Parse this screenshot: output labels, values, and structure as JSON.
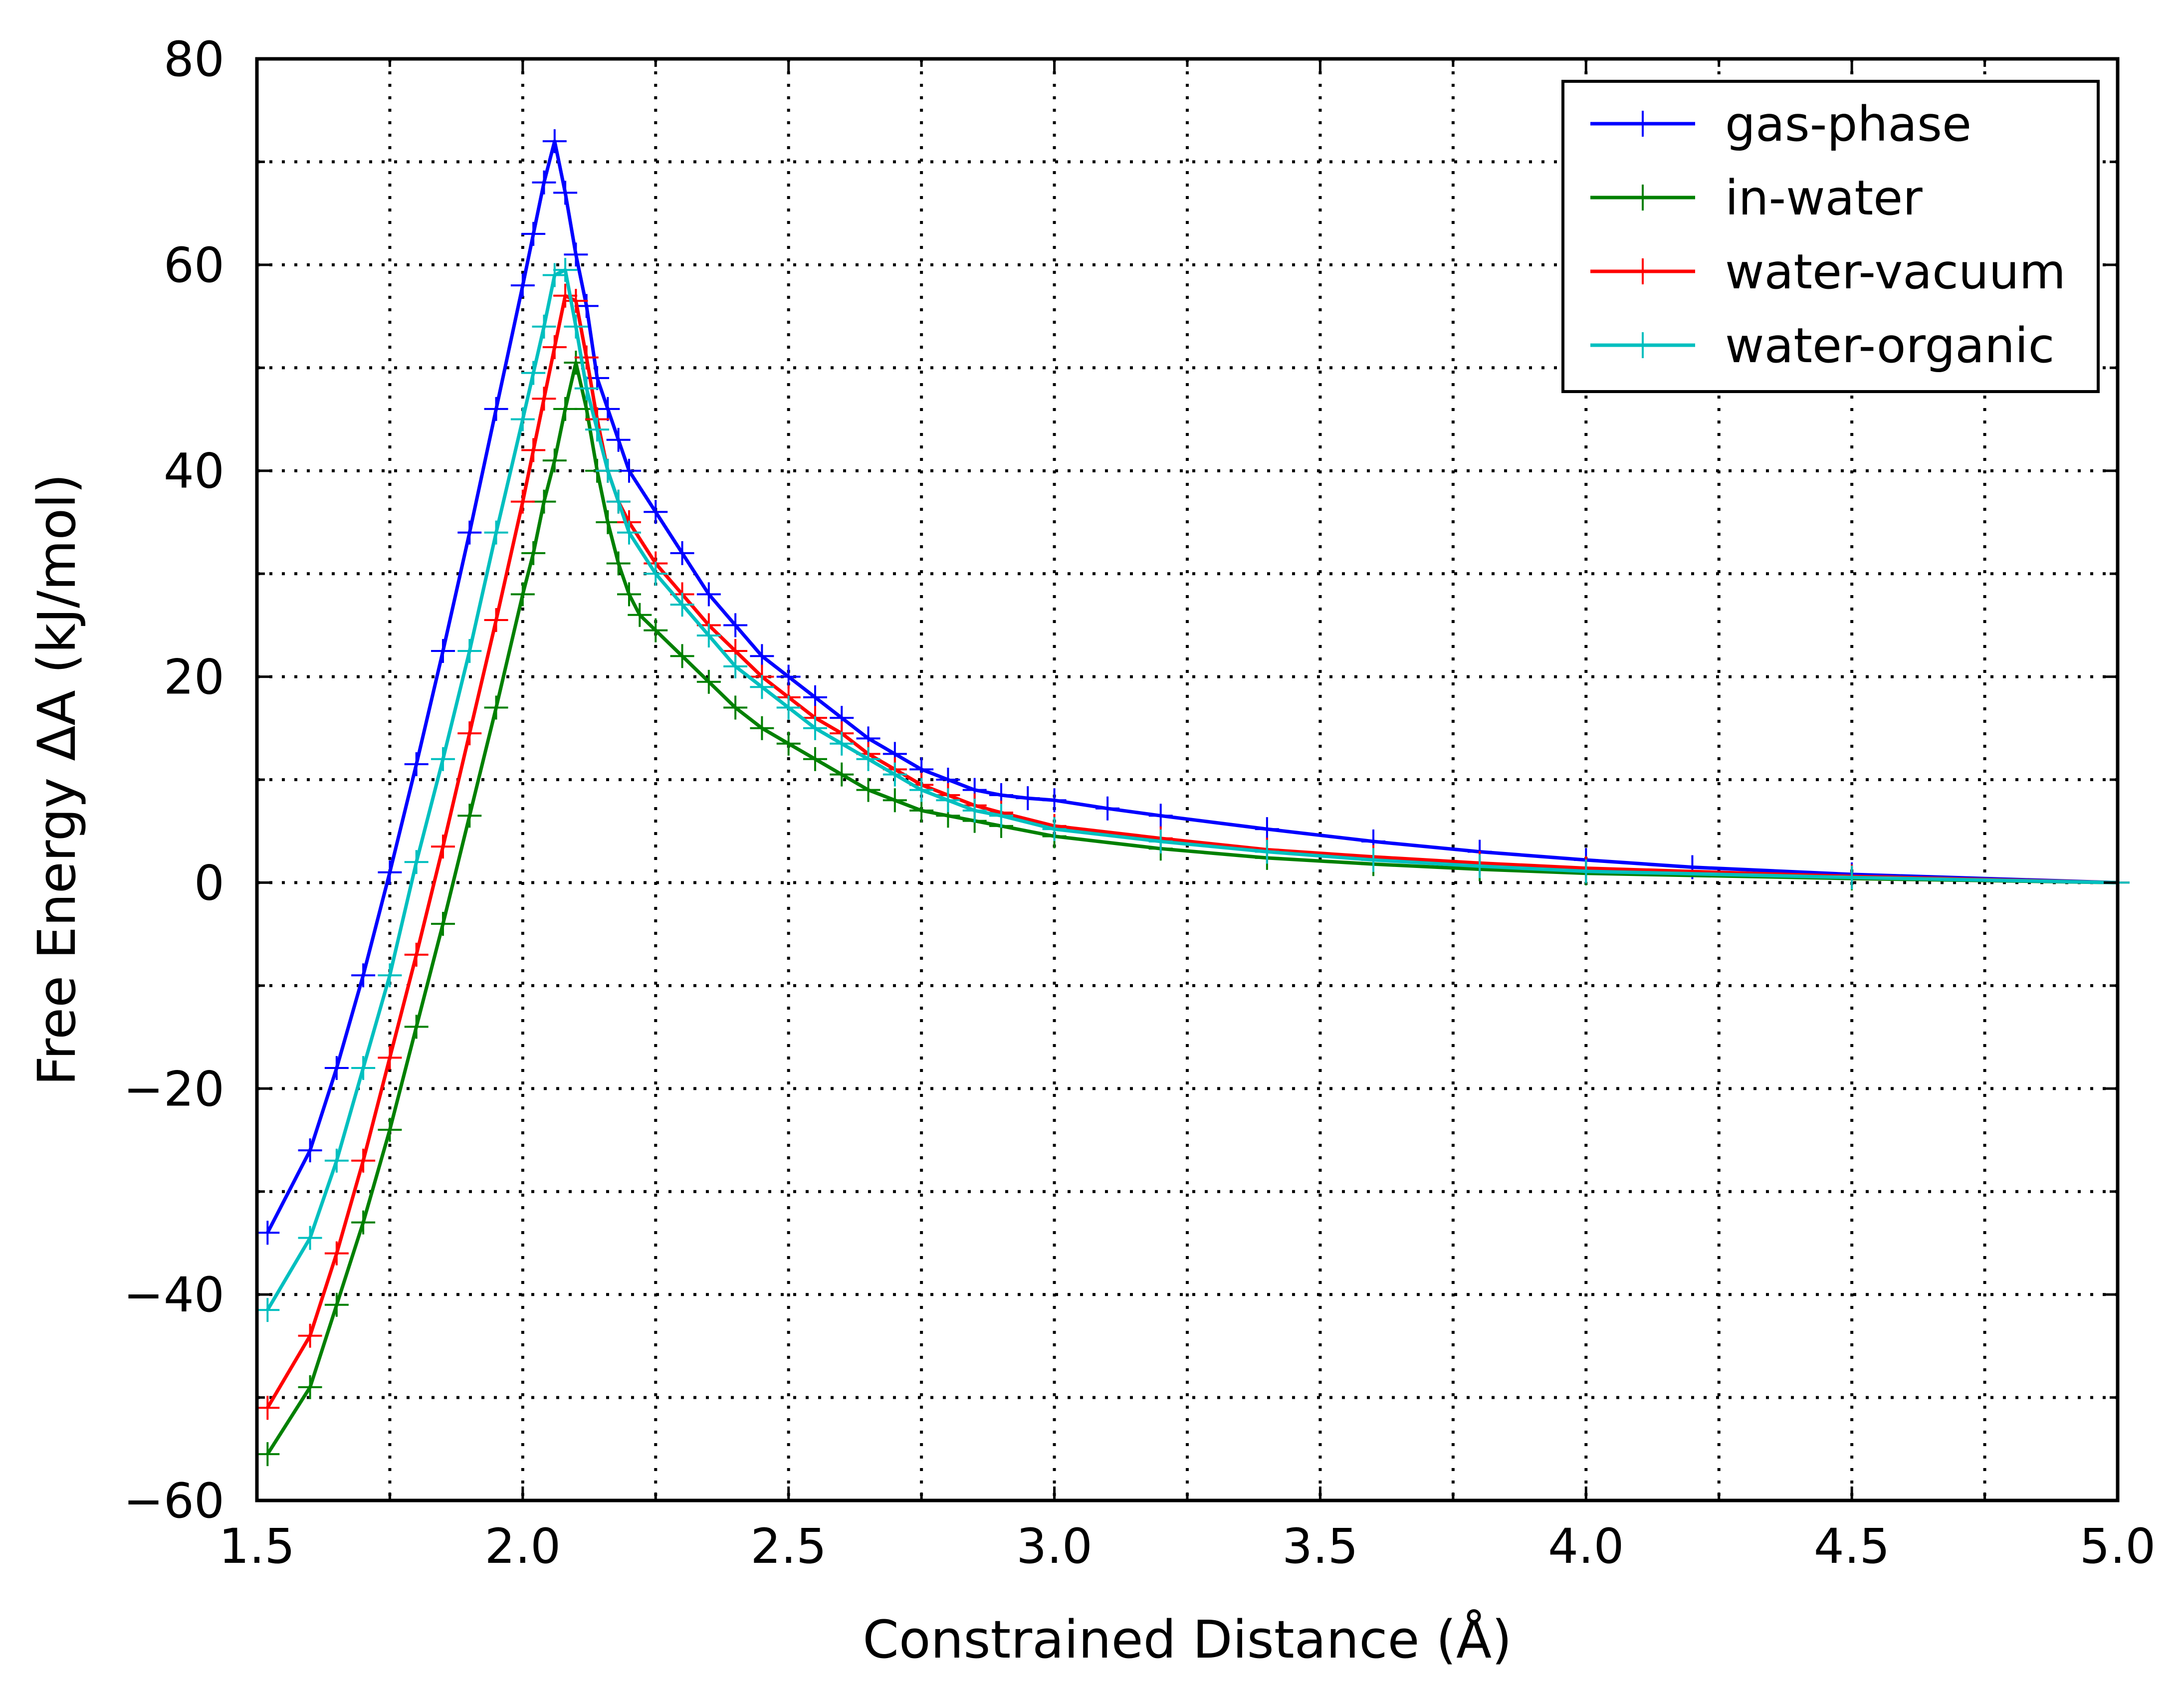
{
  "chart_data": {
    "type": "line",
    "xlabel": "Constrained Distance (Å)",
    "ylabel": "Free Energy ΔA (kJ/mol)",
    "xlim": [
      1.5,
      5.0
    ],
    "ylim": [
      -60,
      80
    ],
    "xticks": [
      1.5,
      2.0,
      2.5,
      3.0,
      3.5,
      4.0,
      4.5,
      5.0
    ],
    "xtick_labels": [
      "1.5",
      "2.0",
      "2.5",
      "3.0",
      "3.5",
      "4.0",
      "4.5",
      "5.0"
    ],
    "yticks": [
      -60,
      -40,
      -20,
      0,
      20,
      40,
      60,
      80
    ],
    "ytick_labels": [
      "−60",
      "−40",
      "−20",
      "0",
      "20",
      "40",
      "60",
      "80"
    ],
    "grid": true,
    "grid_style": "dotted",
    "legend_position": "top-right",
    "marker": "+",
    "series": [
      {
        "name": "gas-phase",
        "color": "#0000ff",
        "x": [
          1.52,
          1.6,
          1.65,
          1.7,
          1.75,
          1.8,
          1.85,
          1.9,
          1.95,
          2.0,
          2.02,
          2.04,
          2.06,
          2.08,
          2.1,
          2.12,
          2.14,
          2.16,
          2.18,
          2.2,
          2.25,
          2.3,
          2.35,
          2.4,
          2.45,
          2.5,
          2.55,
          2.6,
          2.65,
          2.7,
          2.75,
          2.8,
          2.85,
          2.9,
          2.95,
          3.0,
          3.1,
          3.2,
          3.4,
          3.6,
          3.8,
          4.0,
          4.2,
          4.5,
          5.0
        ],
        "y": [
          -34,
          -26,
          -18,
          -9,
          1,
          11.5,
          22.5,
          34,
          46,
          58,
          63,
          68,
          72,
          67,
          61,
          56,
          49,
          46,
          43,
          40,
          36,
          32,
          28,
          25,
          22,
          20,
          18,
          16,
          14,
          12.5,
          11,
          10,
          9,
          8.5,
          8.2,
          8,
          7.2,
          6.5,
          5.2,
          4,
          3,
          2.2,
          1.5,
          0.8,
          0
        ]
      },
      {
        "name": "in-water",
        "color": "#008000",
        "x": [
          1.52,
          1.6,
          1.65,
          1.7,
          1.75,
          1.8,
          1.85,
          1.9,
          1.95,
          2.0,
          2.02,
          2.04,
          2.06,
          2.08,
          2.1,
          2.12,
          2.14,
          2.16,
          2.18,
          2.2,
          2.22,
          2.25,
          2.3,
          2.35,
          2.4,
          2.45,
          2.5,
          2.55,
          2.6,
          2.65,
          2.7,
          2.75,
          2.8,
          2.85,
          2.9,
          3.0,
          3.2,
          3.4,
          3.6,
          3.8,
          4.0,
          4.5,
          5.0
        ],
        "y": [
          -55.5,
          -49,
          -41,
          -33,
          -24,
          -14,
          -4,
          6.5,
          17,
          28,
          32,
          37,
          41,
          46,
          50.5,
          46,
          40,
          35,
          31,
          28,
          26,
          24.5,
          22,
          19.5,
          17,
          15,
          13.5,
          12,
          10.5,
          9,
          8,
          7,
          6.5,
          6,
          5.5,
          4.5,
          3.3,
          2.4,
          1.8,
          1.3,
          0.9,
          0.4,
          0
        ]
      },
      {
        "name": "water-vacuum",
        "color": "#ff0000",
        "x": [
          1.52,
          1.6,
          1.65,
          1.7,
          1.75,
          1.8,
          1.85,
          1.9,
          1.95,
          2.0,
          2.02,
          2.04,
          2.06,
          2.08,
          2.1,
          2.12,
          2.14,
          2.16,
          2.18,
          2.2,
          2.25,
          2.3,
          2.35,
          2.4,
          2.45,
          2.5,
          2.55,
          2.6,
          2.65,
          2.7,
          2.75,
          2.8,
          2.85,
          2.9,
          3.0,
          3.2,
          3.4,
          3.6,
          3.8,
          4.0,
          4.5,
          5.0
        ],
        "y": [
          -51,
          -44,
          -36,
          -27,
          -17,
          -7,
          3.5,
          14.5,
          25.5,
          37,
          42,
          47,
          52,
          57,
          56.5,
          51,
          45,
          40,
          37,
          35,
          31,
          28,
          25,
          22.5,
          20,
          18,
          16,
          14.5,
          12.5,
          11,
          9.5,
          8.5,
          7.5,
          6.8,
          5.5,
          4.3,
          3.2,
          2.5,
          1.9,
          1.4,
          0.6,
          0
        ]
      },
      {
        "name": "water-organic",
        "color": "#00bfbf",
        "x": [
          1.52,
          1.6,
          1.65,
          1.7,
          1.75,
          1.8,
          1.85,
          1.9,
          1.95,
          2.0,
          2.02,
          2.04,
          2.06,
          2.08,
          2.1,
          2.12,
          2.14,
          2.16,
          2.18,
          2.2,
          2.25,
          2.3,
          2.35,
          2.4,
          2.45,
          2.5,
          2.55,
          2.6,
          2.65,
          2.7,
          2.75,
          2.8,
          2.85,
          2.9,
          3.0,
          3.2,
          3.4,
          3.6,
          3.8,
          4.0,
          4.5,
          5.0
        ],
        "y": [
          -41.5,
          -34.5,
          -27,
          -18,
          -9,
          2,
          12,
          22.5,
          34,
          45,
          49.5,
          54,
          59,
          59.5,
          54,
          48,
          44,
          40,
          37,
          34,
          30,
          27,
          24,
          21,
          19,
          17,
          15,
          13.5,
          12,
          10.5,
          9,
          8,
          7,
          6.5,
          5.2,
          4,
          3,
          2.2,
          1.6,
          1.1,
          0.5,
          0
        ]
      }
    ]
  }
}
